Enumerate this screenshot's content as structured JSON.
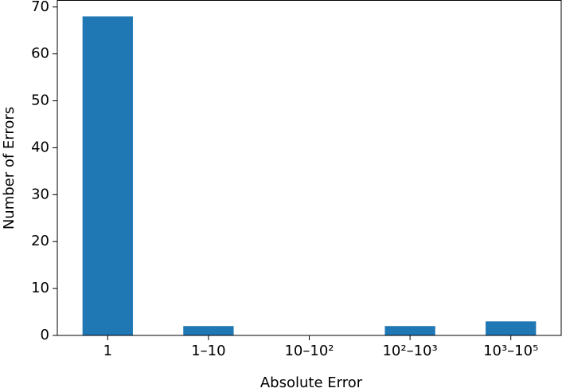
{
  "chart_data": {
    "type": "bar",
    "x_label": "Absolute Error",
    "y_label": "Number of Errors",
    "categories": [
      "1",
      "1–10",
      "10–10²",
      "10²–10³",
      "10³–10⁵"
    ],
    "values": [
      68,
      2,
      0,
      2,
      3
    ],
    "color": "#1f77b4",
    "ylim": [
      0,
      71.4
    ],
    "yticks": [
      0,
      10,
      20,
      30,
      40,
      50,
      60,
      70
    ]
  }
}
